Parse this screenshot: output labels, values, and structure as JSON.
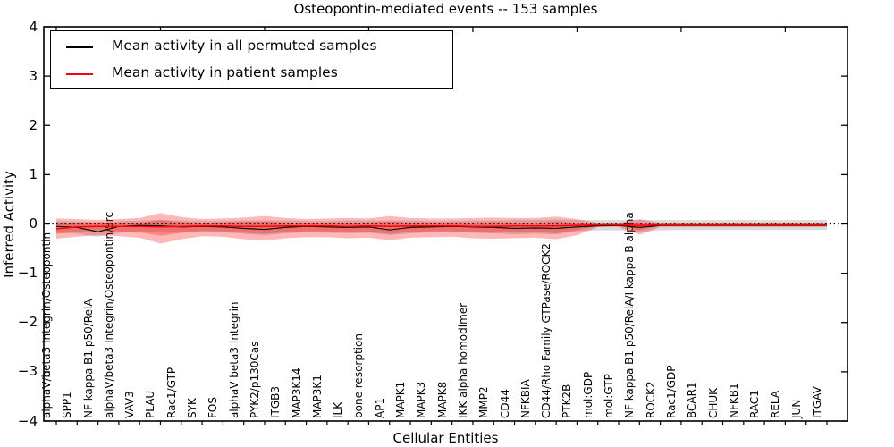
{
  "title": "Osteopontin-mediated events -- 153 samples",
  "axes": {
    "x_label": "Cellular Entities",
    "y_label": "Inferred Activity",
    "y_ticks": [
      "4",
      "3",
      "2",
      "1",
      "0",
      "−1",
      "−2",
      "−3",
      "−4"
    ]
  },
  "legend": {
    "items": [
      {
        "label": "Mean activity in all permuted samples",
        "color": "#000000"
      },
      {
        "label": "Mean activity in patient samples",
        "color": "#ff0000"
      }
    ]
  },
  "chart_data": {
    "type": "line",
    "title": "Osteopontin-mediated events -- 153 samples",
    "xlabel": "Cellular Entities",
    "ylabel": "Inferred Activity",
    "ylim": [
      -4,
      4
    ],
    "grid": false,
    "legend_position": "upper left",
    "zero_reference_line": {
      "style": "dotted",
      "color": "#000000",
      "y": 0
    },
    "x_tick_label_rotation_deg": 90,
    "categories": [
      "alphaV/beta3 Integrin/Osteopontin",
      "SPP1",
      "NF kappa B1 p50/RelA",
      "alphaV/beta3 Integrin/Osteopontin/Src",
      "VAV3",
      "PLAU",
      "Rac1/GTP",
      "SYK",
      "FOS",
      "alphaV beta3 Integrin",
      "PYK2/p130Cas",
      "ITGB3",
      "MAP3K14",
      "MAP3K1",
      "ILK",
      "bone resorption",
      "AP1",
      "MAPK1",
      "MAPK3",
      "MAPK8",
      "IKK alpha homodimer",
      "MMP2",
      "CD44",
      "NFKBIA",
      "CD44/Rho Family GTPase/ROCK2",
      "PTK2B",
      "mol:GDP",
      "mol:GTP",
      "NF kappa B1 p50/RelA/I kappa B alpha",
      "ROCK2",
      "Rac1/GDP",
      "BCAR1",
      "CHUK",
      "NFKB1",
      "RAC1",
      "RELA",
      "JUN",
      "ITGAV"
    ],
    "series": [
      {
        "name": "Mean activity in all permuted samples",
        "color": "#000000",
        "values": [
          -0.05,
          -0.07,
          -0.16,
          -0.05,
          -0.03,
          -0.04,
          -0.06,
          -0.05,
          -0.06,
          -0.09,
          -0.11,
          -0.07,
          -0.05,
          -0.06,
          -0.07,
          -0.06,
          -0.12,
          -0.07,
          -0.06,
          -0.05,
          -0.06,
          -0.07,
          -0.09,
          -0.08,
          -0.09,
          -0.06,
          -0.04,
          -0.03,
          -0.07,
          -0.03,
          -0.03,
          -0.03,
          -0.03,
          -0.03,
          -0.03,
          -0.03,
          -0.03,
          -0.03
        ]
      },
      {
        "name": "Mean activity in patient samples",
        "color": "#ff0000",
        "values": [
          -0.1,
          -0.06,
          -0.05,
          -0.05,
          -0.05,
          -0.06,
          -0.05,
          -0.04,
          -0.04,
          -0.05,
          -0.05,
          -0.04,
          -0.04,
          -0.04,
          -0.05,
          -0.04,
          -0.05,
          -0.04,
          -0.04,
          -0.04,
          -0.05,
          -0.05,
          -0.04,
          -0.04,
          -0.04,
          -0.03,
          -0.02,
          -0.02,
          -0.03,
          -0.02,
          -0.02,
          -0.02,
          -0.02,
          -0.02,
          -0.02,
          -0.02,
          -0.02,
          -0.02
        ]
      }
    ],
    "bands": [
      {
        "name": "permuted-samples-std-band",
        "color": "rgba(0,0,0,0.15)",
        "upper": [
          0.06,
          0.05,
          0.04,
          0.06,
          0.07,
          0.08,
          0.07,
          0.06,
          0.06,
          0.07,
          0.07,
          0.07,
          0.06,
          0.06,
          0.07,
          0.07,
          0.07,
          0.07,
          0.06,
          0.06,
          0.07,
          0.07,
          0.08,
          0.08,
          0.09,
          0.08,
          0.08,
          0.08,
          0.08,
          0.08,
          0.08,
          0.08,
          0.08,
          0.08,
          0.08,
          0.08,
          0.08,
          0.08
        ],
        "lower": [
          -0.18,
          -0.2,
          -0.26,
          -0.18,
          -0.15,
          -0.16,
          -0.18,
          -0.16,
          -0.17,
          -0.2,
          -0.23,
          -0.19,
          -0.17,
          -0.18,
          -0.19,
          -0.18,
          -0.23,
          -0.19,
          -0.17,
          -0.16,
          -0.18,
          -0.19,
          -0.21,
          -0.2,
          -0.21,
          -0.15,
          -0.13,
          -0.13,
          -0.16,
          -0.13,
          -0.12,
          -0.12,
          -0.12,
          -0.12,
          -0.12,
          -0.12,
          -0.12,
          -0.12
        ]
      },
      {
        "name": "patient-samples-outer-band",
        "color": "rgba(255,0,0,0.28)",
        "upper": [
          0.11,
          0.1,
          0.08,
          0.1,
          0.12,
          0.22,
          0.14,
          0.1,
          0.11,
          0.13,
          0.16,
          0.12,
          0.1,
          0.11,
          0.12,
          0.11,
          0.16,
          0.12,
          0.11,
          0.11,
          0.12,
          0.13,
          0.12,
          0.12,
          0.15,
          0.1,
          0.02,
          0.02,
          0.1,
          0.02,
          0.02,
          0.02,
          0.02,
          0.02,
          0.02,
          0.02,
          0.02,
          0.02
        ],
        "lower": [
          -0.3,
          -0.26,
          -0.23,
          -0.25,
          -0.28,
          -0.4,
          -0.31,
          -0.25,
          -0.26,
          -0.31,
          -0.34,
          -0.29,
          -0.27,
          -0.27,
          -0.29,
          -0.28,
          -0.33,
          -0.28,
          -0.27,
          -0.26,
          -0.29,
          -0.3,
          -0.29,
          -0.28,
          -0.31,
          -0.23,
          -0.06,
          -0.06,
          -0.22,
          -0.06,
          -0.06,
          -0.06,
          -0.06,
          -0.06,
          -0.06,
          -0.06,
          -0.06,
          -0.06
        ]
      },
      {
        "name": "patient-samples-inner-band",
        "color": "rgba(255,0,0,0.28)",
        "upper": [
          0.02,
          0.02,
          0.01,
          0.02,
          0.03,
          0.08,
          0.04,
          0.02,
          0.03,
          0.04,
          0.05,
          0.03,
          0.02,
          0.03,
          0.03,
          0.03,
          0.05,
          0.03,
          0.03,
          0.03,
          0.03,
          0.04,
          0.03,
          0.03,
          0.05,
          0.02,
          0.0,
          0.0,
          0.03,
          0.0,
          0.0,
          0.0,
          0.0,
          0.0,
          0.0,
          0.0,
          0.0,
          0.0
        ],
        "lower": [
          -0.2,
          -0.16,
          -0.13,
          -0.15,
          -0.17,
          -0.24,
          -0.18,
          -0.14,
          -0.15,
          -0.18,
          -0.2,
          -0.17,
          -0.15,
          -0.15,
          -0.17,
          -0.16,
          -0.2,
          -0.16,
          -0.15,
          -0.15,
          -0.17,
          -0.18,
          -0.17,
          -0.16,
          -0.19,
          -0.13,
          -0.04,
          -0.04,
          -0.13,
          -0.04,
          -0.04,
          -0.04,
          -0.04,
          -0.04,
          -0.04,
          -0.04,
          -0.04,
          -0.04
        ]
      }
    ]
  }
}
